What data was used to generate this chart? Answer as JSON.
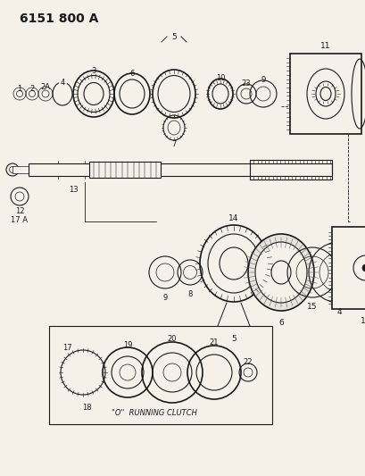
{
  "title": "6151 800 A",
  "bg_color": "#f5f0e8",
  "line_color": "#1a1a1a",
  "title_fontsize": 10,
  "inset_label": "\"O\"  RUNNING CLUTCH",
  "fig_w": 4.1,
  "fig_h": 5.33,
  "dpi": 100
}
